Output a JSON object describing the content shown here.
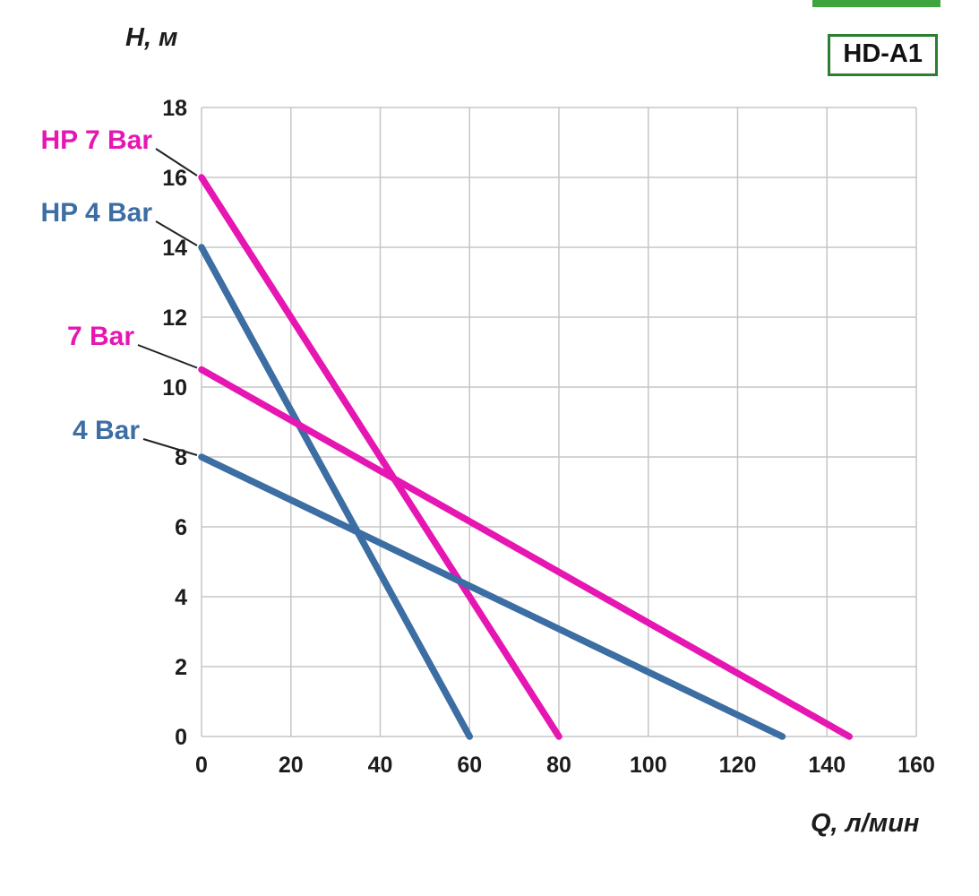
{
  "badge": "HD-A1",
  "chart_data": {
    "type": "line",
    "title": "HD-A1",
    "xlabel": "Q, л/мин",
    "ylabel": "H, м",
    "xlim": [
      0,
      160
    ],
    "ylim": [
      0,
      18
    ],
    "xticks": [
      0,
      20,
      40,
      60,
      80,
      100,
      120,
      140,
      160
    ],
    "yticks": [
      0,
      2,
      4,
      6,
      8,
      10,
      12,
      14,
      16,
      18
    ],
    "grid": true,
    "legend_position": "left-annotations",
    "colors": {
      "magenta": "#e616b2",
      "blue": "#3c6da3",
      "badge_border": "#2c7e31",
      "grid": "#c6c6c6",
      "leader": "#222222"
    },
    "series": [
      {
        "name": "HP 7 Bar",
        "color": "#e616b2",
        "points": [
          [
            0,
            16
          ],
          [
            80,
            0
          ]
        ]
      },
      {
        "name": "HP 4 Bar",
        "color": "#3c6da3",
        "points": [
          [
            0,
            14
          ],
          [
            60,
            0
          ]
        ]
      },
      {
        "name": "7 Bar",
        "color": "#e616b2",
        "points": [
          [
            0,
            10.5
          ],
          [
            145,
            0
          ]
        ]
      },
      {
        "name": "4 Bar",
        "color": "#3c6da3",
        "points": [
          [
            0,
            8
          ],
          [
            130,
            0
          ]
        ]
      }
    ]
  }
}
